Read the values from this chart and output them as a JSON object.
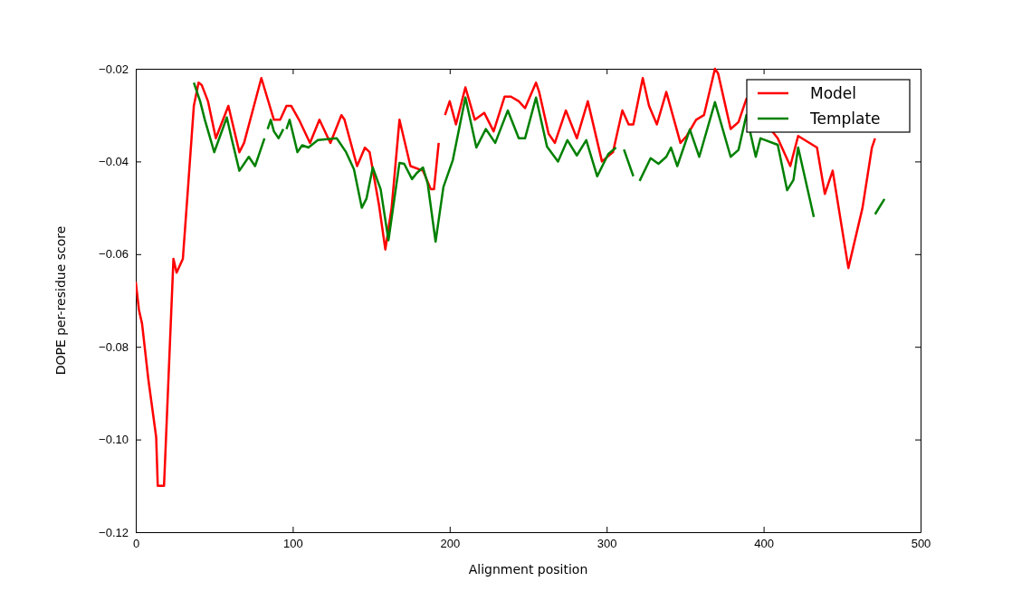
{
  "chart_data": {
    "type": "line",
    "xlabel": "Alignment position",
    "ylabel": "DOPE per-residue score",
    "xlim": [
      0,
      500
    ],
    "xticks": [
      0,
      100,
      200,
      300,
      400,
      500
    ],
    "ylim": [
      -0.12,
      -0.02
    ],
    "yticks": [
      {
        "value": -0.12,
        "label": "−0.12"
      },
      {
        "value": -0.1,
        "label": "−0.10"
      },
      {
        "value": -0.08,
        "label": "−0.08"
      },
      {
        "value": -0.06,
        "label": "−0.06"
      },
      {
        "value": -0.04,
        "label": "−0.04"
      },
      {
        "value": -0.02,
        "label": "−0.02"
      }
    ],
    "grid": false,
    "legend": "top right",
    "line_style": "solid",
    "marker": "none",
    "series": [
      {
        "name": "Model",
        "color": "#ff0000",
        "x": [
          0,
          2,
          4,
          8,
          13,
          14,
          18,
          24,
          26,
          30,
          33,
          37,
          40,
          42,
          46,
          51,
          59,
          66,
          69,
          80,
          88,
          92,
          96,
          99,
          104,
          111,
          117,
          124,
          131,
          133,
          141,
          146,
          149,
          155,
          159,
          163,
          168,
          175,
          183,
          188,
          190,
          193,
          195,
          197,
          200,
          204,
          210,
          216,
          222,
          228,
          235,
          239,
          244,
          248,
          255,
          257,
          263,
          267,
          274,
          281,
          288,
          297,
          304,
          310,
          314,
          317,
          323,
          327,
          332,
          338,
          347,
          351,
          357,
          362,
          369,
          371,
          379,
          384,
          389,
          409,
          417,
          422,
          434,
          439,
          444,
          454,
          463,
          469,
          471
        ],
        "values": [
          -0.066,
          -0.072,
          -0.075,
          -0.087,
          -0.0995,
          -0.11,
          -0.11,
          -0.061,
          -0.064,
          -0.061,
          -0.047,
          -0.028,
          -0.023,
          -0.0235,
          -0.027,
          -0.035,
          -0.028,
          -0.038,
          -0.036,
          -0.022,
          -0.031,
          -0.031,
          -0.028,
          -0.028,
          -0.031,
          -0.036,
          -0.031,
          -0.036,
          -0.03,
          -0.031,
          -0.041,
          -0.037,
          -0.038,
          -0.0495,
          -0.059,
          -0.05,
          -0.031,
          -0.041,
          -0.042,
          -0.046,
          -0.046,
          -0.036,
          null,
          -0.03,
          -0.027,
          -0.032,
          -0.024,
          -0.031,
          -0.0295,
          -0.0335,
          -0.026,
          -0.026,
          -0.027,
          -0.0285,
          -0.023,
          -0.025,
          -0.034,
          -0.036,
          -0.029,
          -0.035,
          -0.027,
          -0.04,
          -0.038,
          -0.029,
          -0.032,
          -0.032,
          -0.022,
          -0.028,
          -0.032,
          -0.025,
          -0.036,
          -0.0345,
          -0.031,
          -0.03,
          -0.02,
          -0.021,
          -0.033,
          -0.0315,
          -0.0265,
          -0.035,
          -0.041,
          -0.0345,
          -0.037,
          -0.047,
          -0.042,
          -0.063,
          -0.05,
          -0.037,
          -0.035
        ]
      },
      {
        "name": "Template",
        "color": "#008000",
        "x": [
          37,
          41,
          44,
          50,
          58,
          61,
          66,
          72,
          76,
          82,
          83,
          84,
          86,
          88,
          91,
          94,
          95,
          96,
          98,
          103,
          106,
          110,
          116,
          128,
          134,
          139,
          144,
          147,
          151,
          156,
          161,
          168,
          171,
          176,
          179,
          183,
          186,
          191,
          196,
          202,
          210,
          217,
          223,
          229,
          237,
          244,
          248,
          255,
          262,
          269,
          275,
          281,
          287,
          294,
          301,
          306,
          308,
          311,
          317,
          319,
          321,
          328,
          333,
          338,
          341,
          345,
          353,
          359,
          369,
          379,
          384,
          389,
          395,
          398,
          409,
          415,
          419,
          422,
          432,
          450,
          471,
          477
        ],
        "values": [
          -0.023,
          -0.027,
          -0.031,
          -0.038,
          -0.0305,
          -0.035,
          -0.042,
          -0.039,
          -0.041,
          -0.035,
          null,
          -0.033,
          -0.031,
          -0.0335,
          -0.035,
          -0.033,
          null,
          -0.033,
          -0.031,
          -0.038,
          -0.0365,
          -0.037,
          -0.0354,
          -0.035,
          -0.038,
          -0.0417,
          -0.05,
          -0.048,
          -0.0413,
          -0.046,
          -0.057,
          -0.0403,
          -0.0405,
          -0.0438,
          -0.0425,
          -0.0413,
          -0.0448,
          -0.0573,
          -0.0455,
          -0.0397,
          -0.0262,
          -0.037,
          -0.033,
          -0.036,
          -0.029,
          -0.035,
          -0.035,
          -0.0262,
          -0.0368,
          -0.04,
          -0.0354,
          -0.0387,
          -0.0354,
          -0.0432,
          -0.0384,
          -0.037,
          null,
          -0.0374,
          -0.0432,
          null,
          -0.0442,
          -0.0393,
          -0.0405,
          -0.039,
          -0.037,
          -0.041,
          -0.0331,
          -0.039,
          -0.0272,
          -0.039,
          -0.0375,
          -0.03,
          -0.039,
          -0.035,
          -0.0364,
          -0.0462,
          -0.044,
          -0.037,
          -0.052,
          null,
          -0.0514,
          -0.0481
        ]
      }
    ]
  }
}
